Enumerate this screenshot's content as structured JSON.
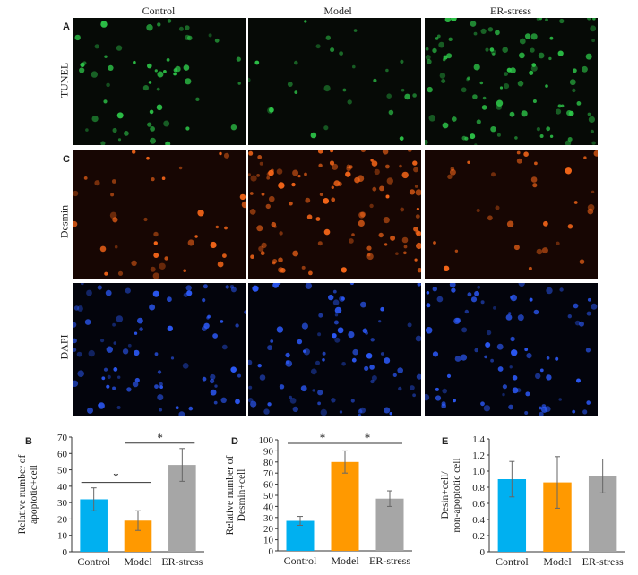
{
  "figure": {
    "columns": [
      "Control",
      "Model",
      "ER-stress"
    ],
    "panel_labels": {
      "a": "A",
      "c": "C",
      "b": "B",
      "d": "D",
      "e": "E"
    },
    "row_labels": [
      "TUNEL",
      "Desmin",
      "DAPI"
    ],
    "stain_colors": {
      "TUNEL": "#2ec94a",
      "Desmin": "#ff6a1a",
      "DAPI": "#2d5cff"
    },
    "cell_density": {
      "TUNEL": [
        0.5,
        0.25,
        0.9
      ],
      "Desmin": [
        0.35,
        0.95,
        0.3
      ],
      "DAPI": [
        0.75,
        0.75,
        0.75
      ]
    }
  },
  "chart_data": [
    {
      "panel": "B",
      "type": "bar",
      "categories": [
        "Control",
        "Model",
        "ER-stress"
      ],
      "values": [
        32,
        19,
        53
      ],
      "errors": [
        7,
        6,
        10
      ],
      "ylabel": "Relative number of apoptotic+cell",
      "ylim": [
        0,
        70
      ],
      "yticks": [
        0,
        10,
        20,
        30,
        40,
        50,
        60,
        70
      ],
      "colors": [
        "#00b0f0",
        "#ff9900",
        "#a6a6a6"
      ],
      "significance": [
        {
          "from": "Control",
          "to": "Model",
          "label": "*"
        },
        {
          "from": "Model",
          "to": "ER-stress",
          "label": "*"
        }
      ]
    },
    {
      "panel": "D",
      "type": "bar",
      "categories": [
        "Control",
        "Model",
        "ER-stress"
      ],
      "values": [
        27,
        80,
        47
      ],
      "errors": [
        4,
        10,
        7
      ],
      "ylabel": "Relative number of Desmin+cell",
      "ylim": [
        0,
        100
      ],
      "yticks": [
        0,
        10,
        20,
        30,
        40,
        50,
        60,
        70,
        80,
        90,
        100
      ],
      "colors": [
        "#00b0f0",
        "#ff9900",
        "#a6a6a6"
      ],
      "significance": [
        {
          "from": "Control",
          "to": "Model",
          "label": "*"
        },
        {
          "from": "Model",
          "to": "ER-stress",
          "label": "*"
        }
      ]
    },
    {
      "panel": "E",
      "type": "bar",
      "categories": [
        "Control",
        "Model",
        "ER-stress"
      ],
      "values": [
        0.9,
        0.86,
        0.94
      ],
      "errors": [
        0.22,
        0.32,
        0.21
      ],
      "ylabel": "Desin+cell/ non-apoptotic cell",
      "ylim": [
        0,
        1.4
      ],
      "yticks": [
        0,
        0.2,
        0.4,
        0.6,
        0.8,
        1.0,
        1.2,
        1.4
      ],
      "colors": [
        "#00b0f0",
        "#ff9900",
        "#a6a6a6"
      ],
      "significance": []
    }
  ]
}
